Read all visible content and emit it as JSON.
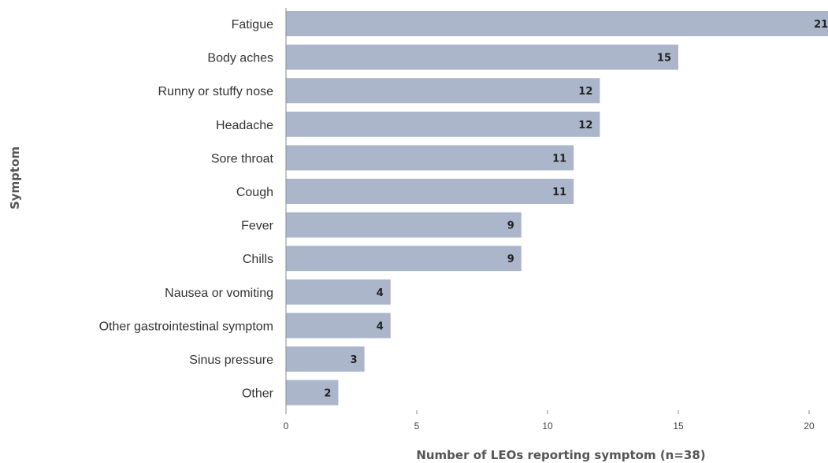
{
  "chart_data": {
    "type": "bar",
    "orientation": "horizontal",
    "categories": [
      "Fatigue",
      "Body aches",
      "Runny or stuffy nose",
      "Headache",
      "Sore throat",
      "Cough",
      "Fever",
      "Chills",
      "Nausea or vomiting",
      "Other gastrointestinal symptom",
      "Sinus pressure",
      "Other"
    ],
    "values": [
      21,
      15,
      12,
      12,
      11,
      11,
      9,
      9,
      4,
      4,
      3,
      2
    ],
    "xlabel": "Number of LEOs reporting symptom (n=38)",
    "ylabel": "Symptom",
    "xlim": [
      0,
      21
    ],
    "xticks": [
      "0",
      "5",
      "10",
      "15",
      "20"
    ],
    "grid": false,
    "data_labels": true,
    "bar_color": "#abb6cb",
    "axis_color": "#888888"
  }
}
